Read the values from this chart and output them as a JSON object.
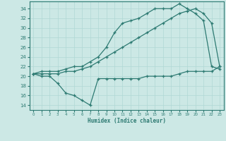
{
  "bg_color": "#cce8e5",
  "line_color": "#2d7a72",
  "grid_color": "#b0d8d4",
  "line1_x": [
    0,
    1,
    2,
    3,
    4,
    5,
    6,
    7,
    8,
    9,
    10,
    11,
    12,
    13,
    14,
    15,
    16,
    17,
    18,
    19,
    20,
    21,
    22,
    23
  ],
  "line1_y": [
    20.5,
    21,
    21,
    21,
    21.5,
    22,
    22,
    23,
    24,
    26,
    29,
    31,
    31.5,
    32,
    33,
    34,
    34,
    34,
    35,
    34,
    33,
    31.5,
    22,
    21.5
  ],
  "line2_x": [
    0,
    1,
    2,
    3,
    4,
    5,
    6,
    7,
    8,
    9,
    10,
    11,
    12,
    13,
    14,
    15,
    16,
    17,
    18,
    19,
    20,
    21,
    22,
    23
  ],
  "line2_y": [
    20.5,
    20.5,
    20.5,
    20.5,
    21,
    21,
    21.5,
    22,
    23,
    24,
    25,
    26,
    27,
    28,
    29,
    30,
    31,
    32,
    33,
    33.5,
    34,
    33,
    31,
    22
  ],
  "line3_x": [
    0,
    1,
    2,
    3,
    4,
    5,
    6,
    7,
    8,
    9,
    10,
    11,
    12,
    13,
    14,
    15,
    16,
    17,
    18,
    19,
    20,
    21,
    22,
    23
  ],
  "line3_y": [
    20.5,
    20,
    20,
    18.5,
    16.5,
    16,
    15,
    14,
    19.5,
    19.5,
    19.5,
    19.5,
    19.5,
    19.5,
    20,
    20,
    20,
    20,
    20.5,
    21,
    21,
    21,
    21,
    22
  ],
  "xlabel": "Humidex (Indice chaleur)",
  "ylim": [
    13,
    35.5
  ],
  "xlim": [
    -0.5,
    23.5
  ],
  "yticks": [
    14,
    16,
    18,
    20,
    22,
    24,
    26,
    28,
    30,
    32,
    34
  ],
  "xticks": [
    0,
    1,
    2,
    3,
    4,
    5,
    6,
    7,
    8,
    9,
    10,
    11,
    12,
    13,
    14,
    15,
    16,
    17,
    18,
    19,
    20,
    21,
    22,
    23
  ]
}
